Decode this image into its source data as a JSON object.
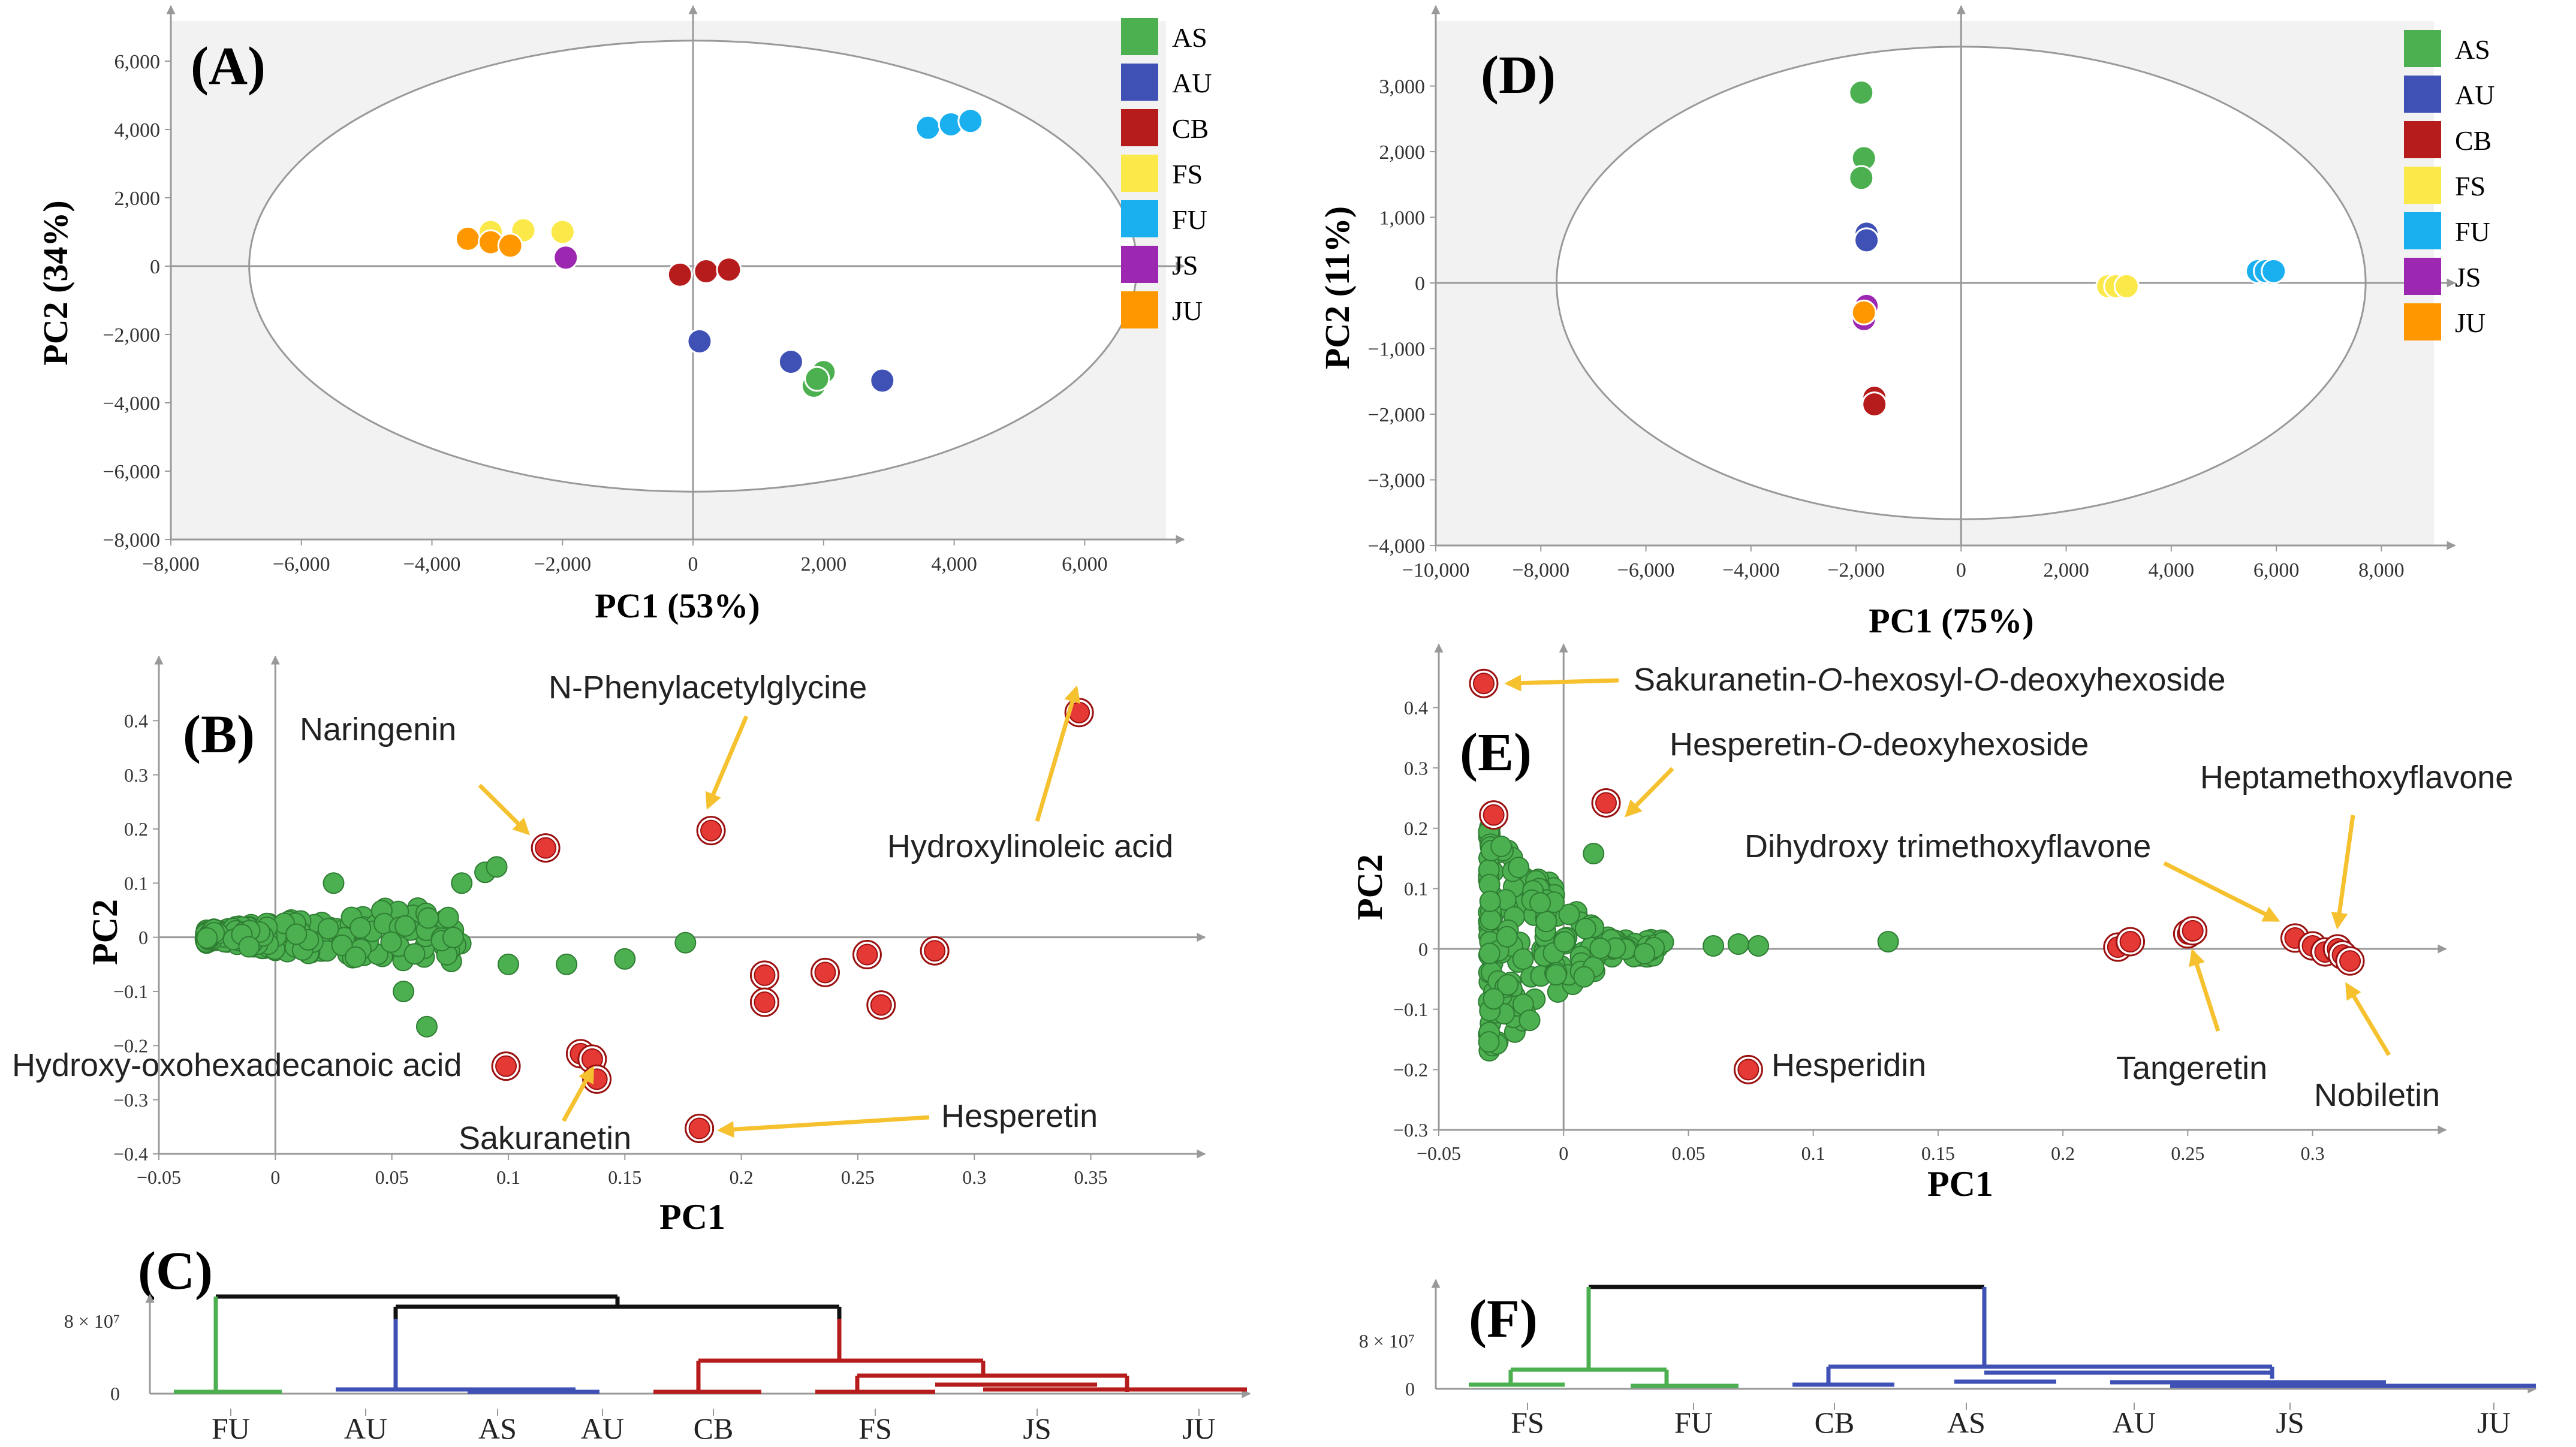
{
  "figure": {
    "colors": {
      "AS": "#4caf50",
      "AU": "#3f51b5",
      "CB": "#b71c1c",
      "FS": "#fbe94a",
      "FU": "#1ab0f0",
      "JS": "#9c27b0",
      "JU": "#ff9800",
      "loading": "#e53935",
      "loading_ring": "#9a1010",
      "green_pt": "#4caf50",
      "arrow": "#f6c12e",
      "axis": "#999999",
      "dendro_black": "#111111",
      "dendro_green": "#4caf50",
      "dendro_blue": "#3f51b5",
      "dendro_red": "#b71c1c"
    },
    "panels": {
      "A": "(A)",
      "B": "(B)",
      "C": "(C)",
      "D": "(D)",
      "E": "(E)",
      "F": "(F)"
    },
    "legend": [
      "AS",
      "AU",
      "CB",
      "FS",
      "FU",
      "JS",
      "JU"
    ]
  },
  "chart_data": [
    {
      "id": "A",
      "type": "scatter",
      "title": "(A)",
      "xlabel": "PC1 (53%)",
      "ylabel": "PC2 (34%)",
      "xlim": [
        -8000,
        7200
      ],
      "ylim": [
        -8000,
        7000
      ],
      "xticks": [
        -8000,
        -6000,
        -4000,
        -2000,
        0,
        2000,
        4000,
        6000
      ],
      "xtick_labels": [
        "−8,000",
        "−6,000",
        "−4,000",
        "−2,000",
        "0",
        "2,000",
        "4,000",
        "6,000"
      ],
      "yticks": [
        -8000,
        -6000,
        -4000,
        -2000,
        0,
        2000,
        4000,
        6000
      ],
      "ytick_labels": [
        "−8,000",
        "−6,000",
        "−4,000",
        "−2,000",
        "0",
        "2,000",
        "4,000",
        "6,000"
      ],
      "ellipse": {
        "cx": 0,
        "cy": 0,
        "rx": 6800,
        "ry": 6600
      },
      "series": [
        {
          "name": "AS",
          "points": [
            [
              1850,
              -3500
            ],
            [
              2000,
              -3100
            ],
            [
              1900,
              -3300
            ]
          ]
        },
        {
          "name": "AU",
          "points": [
            [
              100,
              -2200
            ],
            [
              1500,
              -2800
            ],
            [
              2900,
              -3350
            ]
          ]
        },
        {
          "name": "CB",
          "points": [
            [
              -200,
              -250
            ],
            [
              200,
              -150
            ],
            [
              550,
              -100
            ]
          ]
        },
        {
          "name": "FS",
          "points": [
            [
              -3100,
              1000
            ],
            [
              -2600,
              1050
            ],
            [
              -2000,
              1000
            ]
          ]
        },
        {
          "name": "FU",
          "points": [
            [
              3600,
              4050
            ],
            [
              3950,
              4150
            ],
            [
              4250,
              4250
            ]
          ]
        },
        {
          "name": "JS",
          "points": [
            [
              -1950,
              250
            ]
          ]
        },
        {
          "name": "JU",
          "points": [
            [
              -3450,
              800
            ],
            [
              -3100,
              700
            ],
            [
              -2800,
              600
            ]
          ]
        }
      ]
    },
    {
      "id": "B",
      "type": "scatter",
      "title": "(B)",
      "xlabel": "PC1",
      "ylabel": "PC2",
      "xlim": [
        -0.05,
        0.39
      ],
      "ylim": [
        -0.4,
        0.48
      ],
      "xticks": [
        -0.05,
        0,
        0.05,
        0.1,
        0.15,
        0.2,
        0.25,
        0.3,
        0.35
      ],
      "xtick_labels": [
        "−0.05",
        "0",
        "0.05",
        "0.1",
        "0.15",
        "0.2",
        "0.25",
        "0.3",
        "0.35"
      ],
      "yticks": [
        -0.4,
        -0.3,
        -0.2,
        -0.1,
        0,
        0.1,
        0.2,
        0.3,
        0.4
      ],
      "ytick_labels": [
        "−0.4",
        "−0.3",
        "−0.2",
        "−0.1",
        "0",
        "0.1",
        "0.2",
        "0.3",
        "0.4"
      ],
      "highlighted": [
        [
          0.116,
          0.165
        ],
        [
          0.187,
          0.197
        ],
        [
          0.345,
          0.415
        ],
        [
          0.21,
          -0.07
        ],
        [
          0.21,
          -0.12
        ],
        [
          0.236,
          -0.065
        ],
        [
          0.254,
          -0.032
        ],
        [
          0.26,
          -0.125
        ],
        [
          0.283,
          -0.025
        ],
        [
          0.099,
          -0.238
        ],
        [
          0.131,
          -0.215
        ],
        [
          0.136,
          -0.225
        ],
        [
          0.138,
          -0.262
        ],
        [
          0.182,
          -0.353
        ]
      ],
      "annotations": [
        {
          "label": "Naringenin",
          "point": [
            0.116,
            0.165
          ]
        },
        {
          "label": "N-Phenylacetylglycine",
          "point": [
            0.187,
            0.197
          ]
        },
        {
          "label": "Hydroxylinoleic acid",
          "point": [
            0.345,
            0.415
          ]
        },
        {
          "label": "Hydroxy-oxohexadecanoic acid",
          "point": [
            0.099,
            -0.238
          ]
        },
        {
          "label": "Sakuranetin",
          "point": [
            0.131,
            -0.215
          ]
        },
        {
          "label": "Hesperetin",
          "point": [
            0.182,
            -0.353
          ]
        }
      ]
    },
    {
      "id": "C",
      "type": "dendrogram",
      "title": "(C)",
      "ytick_labels": [
        "0",
        "8 × 10⁷"
      ],
      "leaves": [
        "FU",
        "AU",
        "AS",
        "AU",
        "CB",
        "FS",
        "JS",
        "JU"
      ]
    },
    {
      "id": "D",
      "type": "scatter",
      "title": "(D)",
      "xlabel": "PC1 (75%)",
      "ylabel": "PC2 (11%)",
      "xlim": [
        -10000,
        9000
      ],
      "ylim": [
        -4000,
        3900
      ],
      "xticks": [
        -10000,
        -8000,
        -6000,
        -4000,
        -2000,
        0,
        2000,
        4000,
        6000,
        8000
      ],
      "xtick_labels": [
        "−10,000",
        "−8,000",
        "−6,000",
        "−4,000",
        "−2,000",
        "0",
        "2,000",
        "4,000",
        "6,000",
        "8,000"
      ],
      "yticks": [
        -4000,
        -3000,
        -2000,
        -1000,
        0,
        1000,
        2000,
        3000
      ],
      "ytick_labels": [
        "−4,000",
        "−3,000",
        "−2,000",
        "−1,000",
        "0",
        "1,000",
        "2,000",
        "3,000"
      ],
      "ellipse": {
        "cx": 0,
        "cy": 0,
        "rx": 7700,
        "ry": 3600
      },
      "series": [
        {
          "name": "AS",
          "points": [
            [
              -1900,
              2900
            ],
            [
              -1850,
              1900
            ],
            [
              -1900,
              1600
            ]
          ]
        },
        {
          "name": "AU",
          "points": [
            [
              -1800,
              750
            ],
            [
              -1800,
              650
            ]
          ]
        },
        {
          "name": "CB",
          "points": [
            [
              -1650,
              -1750
            ],
            [
              -1650,
              -1850
            ]
          ]
        },
        {
          "name": "FS",
          "points": [
            [
              2800,
              -50
            ],
            [
              2950,
              -50
            ],
            [
              3150,
              -50
            ]
          ]
        },
        {
          "name": "FU",
          "points": [
            [
              5650,
              180
            ],
            [
              5800,
              180
            ],
            [
              5950,
              180
            ]
          ]
        },
        {
          "name": "JS",
          "points": [
            [
              -1800,
              -350
            ],
            [
              -1850,
              -550
            ]
          ]
        },
        {
          "name": "JU",
          "points": [
            [
              -1850,
              -450
            ]
          ]
        }
      ]
    },
    {
      "id": "E",
      "type": "scatter",
      "title": "(E)",
      "xlabel": "PC1",
      "ylabel": "PC2",
      "xlim": [
        -0.05,
        0.345
      ],
      "ylim": [
        -0.3,
        0.47
      ],
      "xticks": [
        -0.05,
        0,
        0.05,
        0.1,
        0.15,
        0.2,
        0.25,
        0.3
      ],
      "xtick_labels": [
        "−0.05",
        "0",
        "0.05",
        "0.1",
        "0.15",
        "0.2",
        "0.25",
        "0.3"
      ],
      "yticks": [
        -0.3,
        -0.2,
        -0.1,
        0,
        0.1,
        0.2,
        0.3,
        0.4
      ],
      "ytick_labels": [
        "−0.3",
        "−0.2",
        "−0.1",
        "0",
        "0.1",
        "0.2",
        "0.3",
        "0.4"
      ],
      "highlighted": [
        [
          -0.032,
          0.44
        ],
        [
          -0.028,
          0.222
        ],
        [
          0.017,
          0.242
        ],
        [
          0.074,
          -0.2
        ],
        [
          0.222,
          0.003
        ],
        [
          0.227,
          0.012
        ],
        [
          0.25,
          0.025
        ],
        [
          0.252,
          0.03
        ],
        [
          0.293,
          0.018
        ],
        [
          0.3,
          0.005
        ],
        [
          0.305,
          -0.005
        ],
        [
          0.31,
          0.0
        ],
        [
          0.312,
          -0.01
        ],
        [
          0.315,
          -0.02
        ]
      ],
      "annotations": [
        {
          "label": "Sakuranetin-",
          "label_i1": "O",
          "label_m": "-hexosyl-",
          "label_i2": "O",
          "label_e": "-deoxyhexoside",
          "point": [
            -0.032,
            0.44
          ]
        },
        {
          "label": "Hesperetin-",
          "label_i1": "O",
          "label_e": "-deoxyhexoside",
          "point": [
            0.017,
            0.242
          ]
        },
        {
          "label": "Hesperidin",
          "point": [
            0.074,
            -0.2
          ]
        },
        {
          "label": "Tangeretin",
          "point": [
            0.252,
            0.03
          ]
        },
        {
          "label": "Dihydroxy trimethoxyflavone",
          "point": [
            0.293,
            0.018
          ]
        },
        {
          "label": "Heptamethoxyflavone",
          "point": [
            0.31,
            0.0
          ]
        },
        {
          "label": "Nobiletin",
          "point": [
            0.315,
            -0.02
          ]
        }
      ]
    },
    {
      "id": "F",
      "type": "dendrogram",
      "title": "(F)",
      "ytick_labels": [
        "0",
        "8 × 10⁷"
      ],
      "leaves": [
        "FS",
        "FU",
        "CB",
        "AS",
        "AU",
        "JS",
        "JU"
      ]
    }
  ]
}
